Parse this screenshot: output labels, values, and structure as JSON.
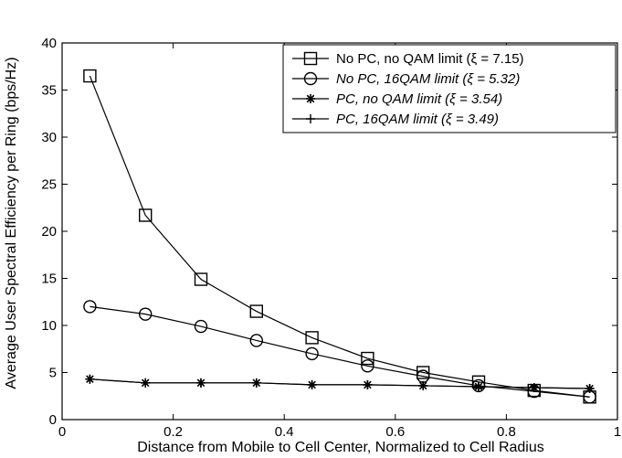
{
  "chart_data": {
    "type": "line",
    "title": "",
    "xlabel": "Distance from Mobile to Cell Center, Normalized to Cell Radius",
    "ylabel": "Average User Spectral Efficiency per Ring (bps/Hz)",
    "xlim": [
      0,
      1
    ],
    "ylim": [
      0,
      40
    ],
    "xticks": [
      "0",
      "0.2",
      "0.4",
      "0.6",
      "0.8",
      "1"
    ],
    "yticks": [
      "0",
      "5",
      "10",
      "15",
      "20",
      "25",
      "30",
      "35",
      "40"
    ],
    "grid": false,
    "legend_position": "top-right",
    "x": [
      0.05,
      0.15,
      0.25,
      0.35,
      0.45,
      0.55,
      0.65,
      0.75,
      0.85,
      0.95
    ],
    "series": [
      {
        "name": "No PC, no QAM limit (ξ = 7.15)",
        "marker": "square",
        "values": [
          36.5,
          21.7,
          14.9,
          11.5,
          8.7,
          6.5,
          5.0,
          4.0,
          3.1,
          2.4
        ]
      },
      {
        "name": "No PC, 16QAM limit (ξ = 5.32)",
        "marker": "circle",
        "values": [
          12.0,
          11.2,
          9.9,
          8.4,
          7.0,
          5.7,
          4.6,
          3.6,
          3.0,
          2.4
        ]
      },
      {
        "name": "PC, no QAM limit (ξ = 3.54)",
        "marker": "asterisk",
        "values": [
          4.3,
          3.9,
          3.9,
          3.9,
          3.7,
          3.7,
          3.6,
          3.5,
          3.4,
          3.3
        ]
      },
      {
        "name": "PC, 16QAM limit (ξ = 3.49)",
        "marker": "plus",
        "values": [
          4.3,
          3.9,
          3.9,
          3.9,
          3.7,
          3.7,
          3.6,
          3.5,
          3.4,
          3.3
        ]
      }
    ]
  }
}
